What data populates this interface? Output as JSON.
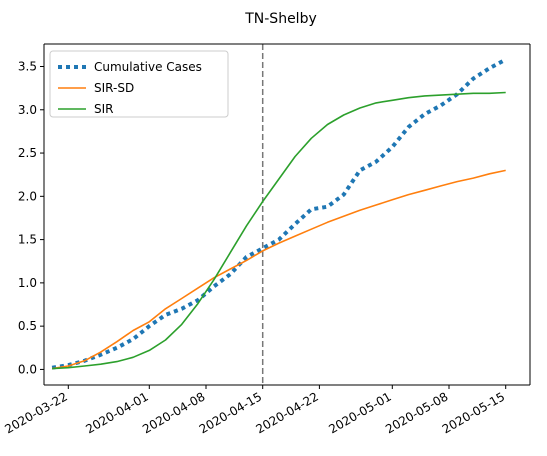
{
  "chart_data": {
    "type": "line",
    "title": "TN-Shelby",
    "xlabel": "",
    "ylabel": "",
    "x_axis_type": "date",
    "xlim": [
      "2020-03-19",
      "2020-05-18"
    ],
    "ylim": [
      -0.18,
      3.76
    ],
    "x_ticks": [
      "2020-03-22",
      "2020-04-01",
      "2020-04-08",
      "2020-04-15",
      "2020-04-22",
      "2020-05-01",
      "2020-05-08",
      "2020-05-15"
    ],
    "y_ticks": [
      "0.0",
      "0.5",
      "1.0",
      "1.5",
      "2.0",
      "2.5",
      "3.0",
      "3.5"
    ],
    "vertical_line": {
      "x": "2020-04-15",
      "style": "dashed",
      "color": "#777777"
    },
    "legend_position": "top-left",
    "grid": false,
    "series": [
      {
        "name": "Cumulative Cases",
        "style": "dotted",
        "color": "#1f77b4",
        "x": [
          "2020-03-20",
          "2020-03-22",
          "2020-03-24",
          "2020-03-26",
          "2020-03-28",
          "2020-03-30",
          "2020-04-01",
          "2020-04-03",
          "2020-04-05",
          "2020-04-07",
          "2020-04-09",
          "2020-04-11",
          "2020-04-13",
          "2020-04-15",
          "2020-04-17",
          "2020-04-19",
          "2020-04-21",
          "2020-04-23",
          "2020-04-25",
          "2020-04-27",
          "2020-04-29",
          "2020-05-01",
          "2020-05-03",
          "2020-05-05",
          "2020-05-07",
          "2020-05-09",
          "2020-05-11",
          "2020-05-13",
          "2020-05-15"
        ],
        "values": [
          0.02,
          0.05,
          0.1,
          0.17,
          0.25,
          0.35,
          0.5,
          0.63,
          0.7,
          0.8,
          0.96,
          1.1,
          1.3,
          1.4,
          1.5,
          1.68,
          1.85,
          1.88,
          2.02,
          2.3,
          2.4,
          2.57,
          2.8,
          2.95,
          3.05,
          3.18,
          3.36,
          3.48,
          3.58
        ]
      },
      {
        "name": "SIR-SD",
        "style": "solid",
        "color": "#ff7f0e",
        "x": [
          "2020-03-20",
          "2020-03-22",
          "2020-03-24",
          "2020-03-26",
          "2020-03-28",
          "2020-03-30",
          "2020-04-01",
          "2020-04-03",
          "2020-04-05",
          "2020-04-07",
          "2020-04-09",
          "2020-04-11",
          "2020-04-13",
          "2020-04-15",
          "2020-04-17",
          "2020-04-19",
          "2020-04-21",
          "2020-04-23",
          "2020-04-25",
          "2020-04-27",
          "2020-04-29",
          "2020-05-01",
          "2020-05-03",
          "2020-05-05",
          "2020-05-07",
          "2020-05-09",
          "2020-05-11",
          "2020-05-13",
          "2020-05-15"
        ],
        "values": [
          0.01,
          0.04,
          0.1,
          0.2,
          0.32,
          0.45,
          0.55,
          0.7,
          0.82,
          0.94,
          1.06,
          1.16,
          1.26,
          1.37,
          1.46,
          1.54,
          1.62,
          1.7,
          1.77,
          1.84,
          1.9,
          1.96,
          2.02,
          2.07,
          2.12,
          2.17,
          2.21,
          2.26,
          2.3
        ]
      },
      {
        "name": "SIR",
        "style": "solid",
        "color": "#2ca02c",
        "x": [
          "2020-03-20",
          "2020-03-22",
          "2020-03-24",
          "2020-03-26",
          "2020-03-28",
          "2020-03-30",
          "2020-04-01",
          "2020-04-03",
          "2020-04-05",
          "2020-04-07",
          "2020-04-09",
          "2020-04-11",
          "2020-04-13",
          "2020-04-15",
          "2020-04-17",
          "2020-04-19",
          "2020-04-21",
          "2020-04-23",
          "2020-04-25",
          "2020-04-27",
          "2020-04-29",
          "2020-05-01",
          "2020-05-03",
          "2020-05-05",
          "2020-05-07",
          "2020-05-09",
          "2020-05-11",
          "2020-05-13",
          "2020-05-15"
        ],
        "values": [
          0.01,
          0.02,
          0.04,
          0.06,
          0.09,
          0.14,
          0.22,
          0.34,
          0.52,
          0.76,
          1.04,
          1.35,
          1.66,
          1.94,
          2.2,
          2.46,
          2.67,
          2.83,
          2.94,
          3.02,
          3.08,
          3.11,
          3.14,
          3.16,
          3.17,
          3.18,
          3.19,
          3.19,
          3.2
        ]
      }
    ]
  }
}
